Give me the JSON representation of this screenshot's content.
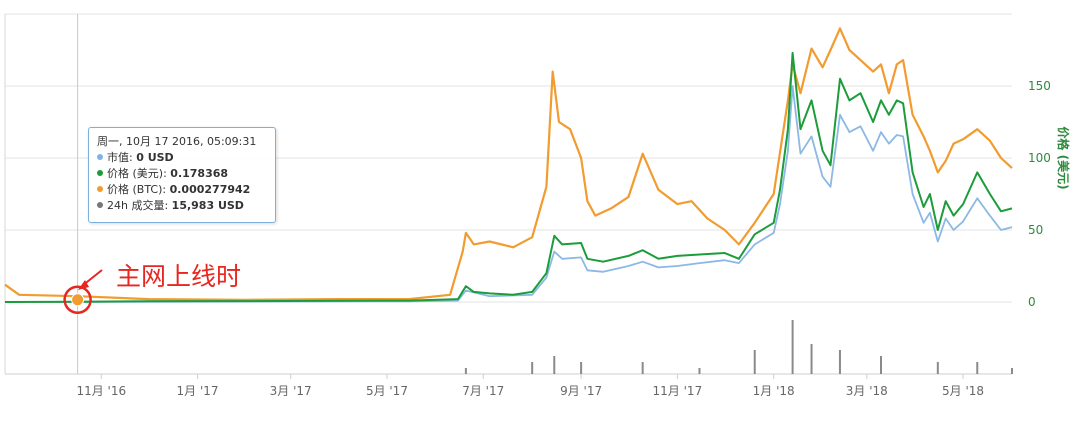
{
  "chart_data": {
    "type": "line",
    "x_ticks": [
      "11月 '16",
      "1月 '17",
      "3月 '17",
      "5月 '17",
      "7月 '17",
      "9月 '17",
      "11月 '17",
      "1月 '18",
      "3月 '18",
      "5月 '18"
    ],
    "y_ticks": [
      "150",
      "100",
      "50",
      "0"
    ],
    "ylabel": "价格 (美元)",
    "ylim": [
      0,
      200
    ],
    "grid": true,
    "colors": {
      "price_usd": "#1c9c3a",
      "price_btc": "#f29b2f",
      "market_cap": "#8cb8e6",
      "volume": "#888888",
      "annotation": "#e8261f"
    },
    "series": [
      {
        "name": "价格 (美元)",
        "points": [
          [
            "2016-09-01",
            0
          ],
          [
            "2016-10-17",
            0.18
          ],
          [
            "2016-12-01",
            0.5
          ],
          [
            "2017-02-01",
            0.6
          ],
          [
            "2017-04-01",
            0.8
          ],
          [
            "2017-05-15",
            1.0
          ],
          [
            "2017-06-15",
            2
          ],
          [
            "2017-06-20",
            11
          ],
          [
            "2017-06-25",
            7
          ],
          [
            "2017-07-05",
            6
          ],
          [
            "2017-07-20",
            5
          ],
          [
            "2017-08-01",
            7
          ],
          [
            "2017-08-10",
            20
          ],
          [
            "2017-08-15",
            46
          ],
          [
            "2017-08-20",
            40
          ],
          [
            "2017-09-01",
            41
          ],
          [
            "2017-09-05",
            30
          ],
          [
            "2017-09-15",
            28
          ],
          [
            "2017-10-01",
            32
          ],
          [
            "2017-10-10",
            36
          ],
          [
            "2017-10-20",
            30
          ],
          [
            "2017-11-01",
            32
          ],
          [
            "2017-11-15",
            33
          ],
          [
            "2017-12-01",
            34
          ],
          [
            "2017-12-10",
            30
          ],
          [
            "2017-12-20",
            47
          ],
          [
            "2018-01-01",
            55
          ],
          [
            "2018-01-05",
            78
          ],
          [
            "2018-01-10",
            120
          ],
          [
            "2018-01-13",
            173
          ],
          [
            "2018-01-18",
            120
          ],
          [
            "2018-01-25",
            140
          ],
          [
            "2018-02-01",
            105
          ],
          [
            "2018-02-06",
            95
          ],
          [
            "2018-02-12",
            155
          ],
          [
            "2018-02-18",
            140
          ],
          [
            "2018-02-25",
            145
          ],
          [
            "2018-03-05",
            125
          ],
          [
            "2018-03-10",
            140
          ],
          [
            "2018-03-15",
            130
          ],
          [
            "2018-03-20",
            140
          ],
          [
            "2018-03-24",
            138
          ],
          [
            "2018-03-30",
            90
          ],
          [
            "2018-04-06",
            66
          ],
          [
            "2018-04-10",
            75
          ],
          [
            "2018-04-15",
            50
          ],
          [
            "2018-04-20",
            70
          ],
          [
            "2018-04-25",
            60
          ],
          [
            "2018-05-01",
            68
          ],
          [
            "2018-05-10",
            90
          ],
          [
            "2018-05-18",
            75
          ],
          [
            "2018-05-25",
            63
          ],
          [
            "2018-06-01",
            65
          ]
        ]
      },
      {
        "name": "价格 (BTC)",
        "points": [
          [
            "2016-09-01",
            12
          ],
          [
            "2016-09-10",
            5
          ],
          [
            "2016-10-17",
            4
          ],
          [
            "2016-12-01",
            2
          ],
          [
            "2017-02-01",
            1.5
          ],
          [
            "2017-04-01",
            2
          ],
          [
            "2017-05-15",
            2
          ],
          [
            "2017-06-10",
            5
          ],
          [
            "2017-06-18",
            35
          ],
          [
            "2017-06-20",
            48
          ],
          [
            "2017-06-25",
            40
          ],
          [
            "2017-07-05",
            42
          ],
          [
            "2017-07-20",
            38
          ],
          [
            "2017-08-01",
            45
          ],
          [
            "2017-08-10",
            80
          ],
          [
            "2017-08-14",
            160
          ],
          [
            "2017-08-18",
            125
          ],
          [
            "2017-08-25",
            120
          ],
          [
            "2017-09-01",
            100
          ],
          [
            "2017-09-05",
            70
          ],
          [
            "2017-09-10",
            60
          ],
          [
            "2017-09-20",
            65
          ],
          [
            "2017-10-01",
            73
          ],
          [
            "2017-10-10",
            103
          ],
          [
            "2017-10-20",
            78
          ],
          [
            "2017-11-01",
            68
          ],
          [
            "2017-11-10",
            70
          ],
          [
            "2017-11-20",
            58
          ],
          [
            "2017-12-01",
            50
          ],
          [
            "2017-12-10",
            40
          ],
          [
            "2017-12-20",
            55
          ],
          [
            "2018-01-01",
            75
          ],
          [
            "2018-01-10",
            140
          ],
          [
            "2018-01-13",
            165
          ],
          [
            "2018-01-18",
            145
          ],
          [
            "2018-01-25",
            176
          ],
          [
            "2018-02-01",
            163
          ],
          [
            "2018-02-06",
            175
          ],
          [
            "2018-02-12",
            190
          ],
          [
            "2018-02-18",
            175
          ],
          [
            "2018-02-25",
            168
          ],
          [
            "2018-03-05",
            160
          ],
          [
            "2018-03-10",
            165
          ],
          [
            "2018-03-15",
            145
          ],
          [
            "2018-03-20",
            165
          ],
          [
            "2018-03-24",
            168
          ],
          [
            "2018-03-30",
            130
          ],
          [
            "2018-04-06",
            115
          ],
          [
            "2018-04-10",
            105
          ],
          [
            "2018-04-15",
            90
          ],
          [
            "2018-04-20",
            98
          ],
          [
            "2018-04-25",
            110
          ],
          [
            "2018-05-01",
            113
          ],
          [
            "2018-05-10",
            120
          ],
          [
            "2018-05-18",
            112
          ],
          [
            "2018-05-25",
            100
          ],
          [
            "2018-06-01",
            93
          ]
        ]
      },
      {
        "name": "市值",
        "points": [
          [
            "2016-09-01",
            0
          ],
          [
            "2016-10-17",
            0
          ],
          [
            "2017-05-15",
            0.5
          ],
          [
            "2017-06-15",
            1
          ],
          [
            "2017-06-20",
            8
          ],
          [
            "2017-07-05",
            4
          ],
          [
            "2017-08-01",
            5
          ],
          [
            "2017-08-10",
            17
          ],
          [
            "2017-08-15",
            35
          ],
          [
            "2017-08-20",
            30
          ],
          [
            "2017-09-01",
            31
          ],
          [
            "2017-09-05",
            22
          ],
          [
            "2017-09-15",
            21
          ],
          [
            "2017-10-01",
            25
          ],
          [
            "2017-10-10",
            28
          ],
          [
            "2017-10-20",
            24
          ],
          [
            "2017-11-01",
            25
          ],
          [
            "2017-11-15",
            27
          ],
          [
            "2017-12-01",
            29
          ],
          [
            "2017-12-10",
            27
          ],
          [
            "2017-12-20",
            40
          ],
          [
            "2018-01-01",
            48
          ],
          [
            "2018-01-05",
            68
          ],
          [
            "2018-01-10",
            105
          ],
          [
            "2018-01-13",
            150
          ],
          [
            "2018-01-18",
            103
          ],
          [
            "2018-01-25",
            115
          ],
          [
            "2018-02-01",
            87
          ],
          [
            "2018-02-06",
            80
          ],
          [
            "2018-02-12",
            130
          ],
          [
            "2018-02-18",
            118
          ],
          [
            "2018-02-25",
            122
          ],
          [
            "2018-03-05",
            105
          ],
          [
            "2018-03-10",
            118
          ],
          [
            "2018-03-15",
            110
          ],
          [
            "2018-03-20",
            116
          ],
          [
            "2018-03-24",
            115
          ],
          [
            "2018-03-30",
            75
          ],
          [
            "2018-04-06",
            55
          ],
          [
            "2018-04-10",
            62
          ],
          [
            "2018-04-15",
            42
          ],
          [
            "2018-04-20",
            58
          ],
          [
            "2018-04-25",
            50
          ],
          [
            "2018-05-01",
            56
          ],
          [
            "2018-05-10",
            72
          ],
          [
            "2018-05-18",
            60
          ],
          [
            "2018-05-25",
            50
          ],
          [
            "2018-06-01",
            52
          ]
        ]
      }
    ],
    "volume": [
      [
        "2017-06-20",
        1
      ],
      [
        "2017-08-01",
        2
      ],
      [
        "2017-08-15",
        3
      ],
      [
        "2017-09-01",
        2
      ],
      [
        "2017-10-10",
        2
      ],
      [
        "2017-11-15",
        1
      ],
      [
        "2017-12-20",
        4
      ],
      [
        "2018-01-13",
        9
      ],
      [
        "2018-01-25",
        5
      ],
      [
        "2018-02-12",
        4
      ],
      [
        "2018-03-10",
        3
      ],
      [
        "2018-04-15",
        2
      ],
      [
        "2018-05-10",
        2
      ],
      [
        "2018-06-01",
        1
      ]
    ],
    "tooltip": {
      "date": "周一, 10月 17 2016, 05:09:31",
      "rows": [
        {
          "label": "市值:",
          "value": "0 USD",
          "color": "#7fb2e5"
        },
        {
          "label": "价格 (美元):",
          "value": "0.178368",
          "color": "#1c9c3a"
        },
        {
          "label": "价格 (BTC):",
          "value": "0.000277942",
          "color": "#f29b2f"
        },
        {
          "label": "24h 成交量:",
          "value": "15,983 USD",
          "color": "#777777"
        }
      ]
    },
    "annotation": "主网上线时"
  }
}
